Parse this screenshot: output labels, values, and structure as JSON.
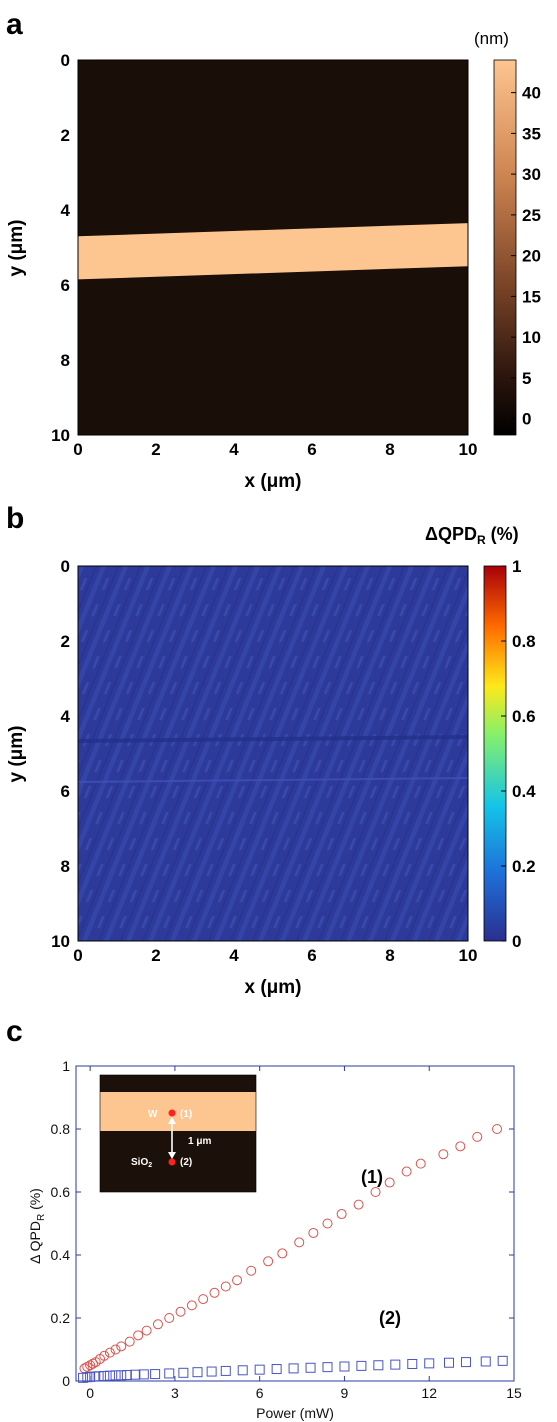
{
  "chart_data": [
    {
      "panel": "a",
      "type": "heatmap",
      "xlabel": "x (μm)",
      "ylabel": "y (μm)",
      "xlim": [
        0,
        10
      ],
      "ylim": [
        0,
        10
      ],
      "x_ticks": [
        "0",
        "2",
        "4",
        "6",
        "8",
        "10"
      ],
      "y_ticks": [
        "0",
        "2",
        "4",
        "6",
        "8",
        "10"
      ],
      "colorbar": {
        "title": "(nm)",
        "range": [
          -2,
          44
        ],
        "ticks": [
          "0",
          "5",
          "10",
          "15",
          "20",
          "25",
          "30",
          "35",
          "40"
        ],
        "colormap": [
          "#000000",
          "#4a2414",
          "#9a5a34",
          "#d9905c",
          "#fdc590"
        ]
      },
      "stripe": {
        "value_nm": 44,
        "background_nm": 0,
        "top_edge_y_at_x0": 4.7,
        "top_edge_y_at_x10": 4.35,
        "bottom_edge_y_at_x0": 5.85,
        "bottom_edge_y_at_x10": 5.5
      }
    },
    {
      "panel": "b",
      "type": "heatmap",
      "xlabel": "x (μm)",
      "ylabel": "y (μm)",
      "xlim": [
        0,
        10
      ],
      "ylim": [
        0,
        10
      ],
      "x_ticks": [
        "0",
        "2",
        "4",
        "6",
        "8",
        "10"
      ],
      "y_ticks": [
        "0",
        "2",
        "4",
        "6",
        "8",
        "10"
      ],
      "colorbar": {
        "title_main": "ΔQPD",
        "title_sub": "R",
        "title_unit": " (%)",
        "range": [
          0,
          1
        ],
        "ticks": [
          "0",
          "0.2",
          "0.4",
          "0.6",
          "0.8",
          "1"
        ],
        "colormap": [
          "#2a2f8f",
          "#1e6fd9",
          "#14c4e8",
          "#7fff7f",
          "#ffe81a",
          "#ff6a00",
          "#a8000a"
        ]
      },
      "background_value_pct": 0.05
    },
    {
      "panel": "c",
      "type": "scatter",
      "xlabel": "Power (mW)",
      "ylabel_main": "Δ QPD",
      "ylabel_sub": "R",
      "ylabel_unit": " (%)",
      "xlim": [
        -0.5,
        15
      ],
      "ylim": [
        0,
        1
      ],
      "x_ticks": [
        0,
        3,
        6,
        9,
        12,
        15
      ],
      "y_ticks": [
        0,
        0.2,
        0.4,
        0.6,
        0.8,
        1
      ],
      "series": [
        {
          "name": "(1)",
          "marker": "circle",
          "color": "#d9534f",
          "x": [
            -0.2,
            -0.1,
            0.0,
            0.1,
            0.2,
            0.35,
            0.5,
            0.7,
            0.9,
            1.1,
            1.4,
            1.7,
            2.0,
            2.4,
            2.8,
            3.2,
            3.6,
            4.0,
            4.4,
            4.8,
            5.2,
            5.7,
            6.3,
            6.8,
            7.4,
            7.9,
            8.4,
            8.9,
            9.5,
            10.1,
            10.6,
            11.2,
            11.7,
            12.5,
            13.1,
            13.7,
            14.4
          ],
          "y": [
            0.04,
            0.045,
            0.05,
            0.055,
            0.06,
            0.07,
            0.08,
            0.09,
            0.1,
            0.11,
            0.125,
            0.145,
            0.16,
            0.18,
            0.2,
            0.22,
            0.24,
            0.26,
            0.28,
            0.3,
            0.32,
            0.35,
            0.38,
            0.405,
            0.44,
            0.47,
            0.5,
            0.53,
            0.56,
            0.6,
            0.63,
            0.665,
            0.69,
            0.72,
            0.745,
            0.775,
            0.8
          ]
        },
        {
          "name": "(2)",
          "marker": "square",
          "color": "#4a54c4",
          "x": [
            -0.25,
            -0.1,
            0.0,
            0.15,
            0.3,
            0.5,
            0.7,
            0.9,
            1.1,
            1.3,
            1.6,
            1.9,
            2.3,
            2.8,
            3.3,
            3.8,
            4.3,
            4.8,
            5.4,
            6.0,
            6.6,
            7.2,
            7.8,
            8.4,
            9.0,
            9.6,
            10.2,
            10.8,
            11.4,
            12.0,
            12.7,
            13.3,
            14.0,
            14.6
          ],
          "y": [
            0.01,
            0.012,
            0.013,
            0.014,
            0.015,
            0.016,
            0.017,
            0.018,
            0.018,
            0.019,
            0.02,
            0.021,
            0.022,
            0.024,
            0.026,
            0.028,
            0.03,
            0.032,
            0.034,
            0.036,
            0.038,
            0.04,
            0.042,
            0.044,
            0.046,
            0.048,
            0.05,
            0.052,
            0.054,
            0.056,
            0.058,
            0.06,
            0.062,
            0.064
          ]
        }
      ],
      "annotations": [
        "(1)",
        "(2)"
      ],
      "inset": {
        "labels": [
          "W",
          "(1)",
          "1 μm",
          "SiO",
          "2",
          "(2)"
        ]
      }
    }
  ],
  "panel_letters": [
    "a",
    "b",
    "c"
  ]
}
